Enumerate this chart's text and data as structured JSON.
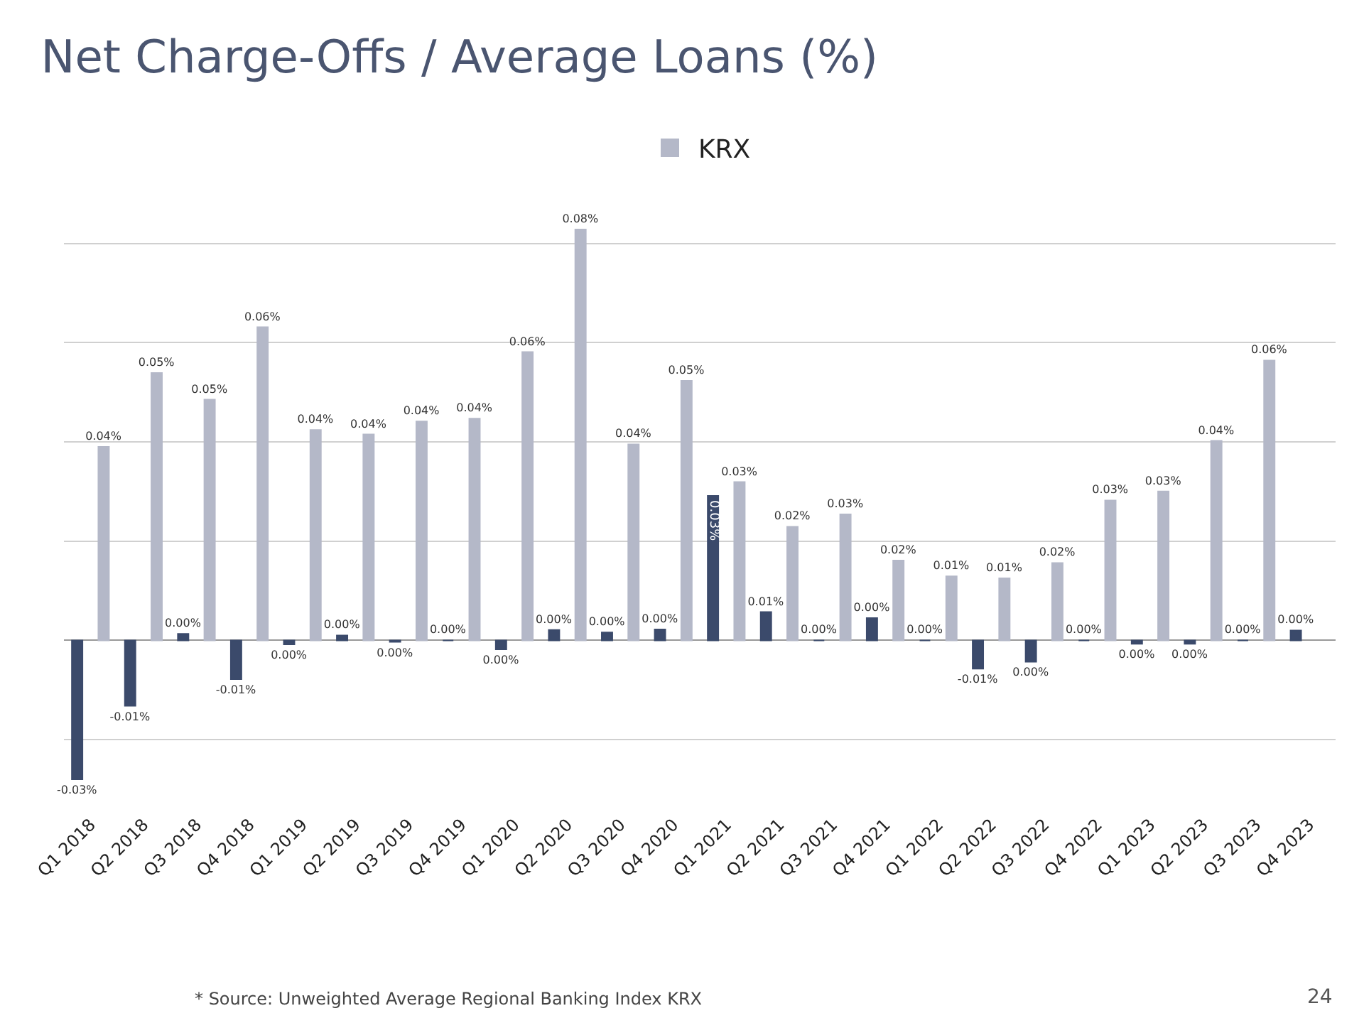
{
  "chart_data": {
    "type": "bar",
    "title": "Net Charge-Offs / Average Loans (%)",
    "categories": [
      "Q1 2018",
      "Q2 2018",
      "Q3 2018",
      "Q4 2018",
      "Q1 2019",
      "Q2 2019",
      "Q3 2019",
      "Q4 2019",
      "Q1 2020",
      "Q2 2020",
      "Q3 2020",
      "Q4 2020",
      "Q1 2021",
      "Q2 2021",
      "Q3 2021",
      "Q4 2021",
      "Q1 2022",
      "Q2 2022",
      "Q3 2022",
      "Q4 2022",
      "Q1 2023",
      "Q2 2023",
      "Q3 2023",
      "Q4 2023"
    ],
    "series": [
      {
        "color": "#3b4a6b",
        "values": [
          -0.028,
          -0.0132,
          0.0013,
          -0.0078,
          -0.0008,
          0.001,
          -0.0003,
          0,
          -0.0018,
          0.0021,
          0.0016,
          0.0022,
          0.0291,
          0.0057,
          0,
          0.0045,
          0,
          -0.0057,
          -0.0043,
          0,
          -0.0007,
          -0.0007,
          0,
          0.002
        ],
        "value_labels": [
          "-0.03%",
          "-0.01%",
          "0.00%",
          "-0.01%",
          "0.00%",
          "0.00%",
          "0.00%",
          "0.00%",
          "0.00%",
          "0.00%",
          "0.00%",
          "0.00%",
          "0.03%",
          "0.01%",
          "0.00%",
          "0.00%",
          "0.00%",
          "-0.01%",
          "0.00%",
          "0.00%",
          "0.00%",
          "0.00%",
          "0.00%",
          "0.00%"
        ]
      },
      {
        "name": "KRX",
        "color": "#b4b8c8",
        "values": [
          0.039,
          0.0539,
          0.0485,
          0.0631,
          0.0424,
          0.0415,
          0.0441,
          0.0447,
          0.0581,
          0.0828,
          0.0395,
          0.0523,
          0.0319,
          0.0229,
          0.0254,
          0.0161,
          0.0129,
          0.0125,
          0.0156,
          0.0282,
          0.03,
          0.0402,
          0.0564,
          null
        ],
        "value_labels": [
          "0.04%",
          "0.05%",
          "0.05%",
          "0.06%",
          "0.04%",
          "0.04%",
          "0.04%",
          "0.04%",
          "0.06%",
          "0.08%",
          "0.04%",
          "0.05%",
          "0.03%",
          "0.02%",
          "0.03%",
          "0.02%",
          "0.01%",
          "0.01%",
          "0.02%",
          "0.03%",
          "0.03%",
          "0.04%",
          "0.06%",
          null
        ]
      }
    ],
    "tick_labels": "x",
    "grid": "y",
    "legend": "top",
    "annotations": [
      "* Source: Unweighted Average Regional Banking Index KRX",
      "24"
    ]
  }
}
